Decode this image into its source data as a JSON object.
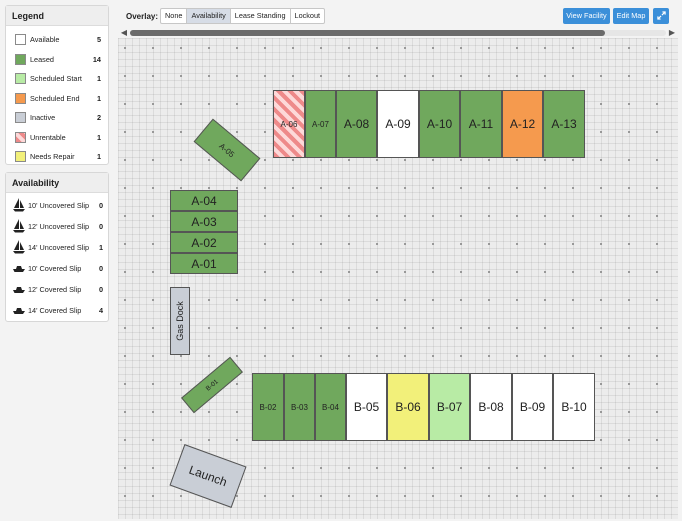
{
  "legend": {
    "title": "Legend",
    "items": [
      {
        "label": "Available",
        "count": "5",
        "color": "#ffffff"
      },
      {
        "label": "Leased",
        "count": "14",
        "color": "#70a85d"
      },
      {
        "label": "Scheduled Start",
        "count": "1",
        "color": "#b8eba5"
      },
      {
        "label": "Scheduled End",
        "count": "1",
        "color": "#f59a4e"
      },
      {
        "label": "Inactive",
        "count": "2",
        "color": "#c9ced6"
      },
      {
        "label": "Unrentable",
        "count": "1",
        "color": "#ee8a8a"
      },
      {
        "label": "Needs Repair",
        "count": "1",
        "color": "#f2f07a"
      }
    ]
  },
  "availability": {
    "title": "Availability",
    "items": [
      {
        "label": "10' Uncovered Slip",
        "count": "0",
        "icon": "sailboat-icon"
      },
      {
        "label": "12' Uncovered Slip",
        "count": "0",
        "icon": "sailboat-icon"
      },
      {
        "label": "14' Uncovered Slip",
        "count": "1",
        "icon": "sailboat-icon"
      },
      {
        "label": "10' Covered Slip",
        "count": "0",
        "icon": "motorboat-icon"
      },
      {
        "label": "12' Covered Slip",
        "count": "0",
        "icon": "motorboat-icon"
      },
      {
        "label": "14' Covered Slip",
        "count": "4",
        "icon": "motorboat-icon"
      }
    ]
  },
  "toolbar": {
    "overlay_label": "Overlay:",
    "overlay_options": [
      "None",
      "Availability",
      "Lease Standing",
      "Lockout"
    ],
    "overlay_selected": "Availability",
    "view_facility": "View Facility",
    "edit_map": "Edit Map",
    "expand_icon": "expand-icon",
    "accent_color": "#3b8fd9"
  },
  "map": {
    "slips": [
      {
        "id": "A-06",
        "status": "unrentable"
      },
      {
        "id": "A-07",
        "status": "leased"
      },
      {
        "id": "A-08",
        "status": "leased"
      },
      {
        "id": "A-09",
        "status": "available"
      },
      {
        "id": "A-10",
        "status": "leased"
      },
      {
        "id": "A-11",
        "status": "leased"
      },
      {
        "id": "A-12",
        "status": "sched-end"
      },
      {
        "id": "A-13",
        "status": "leased"
      },
      {
        "id": "A-05",
        "status": "leased"
      },
      {
        "id": "A-04",
        "status": "leased"
      },
      {
        "id": "A-03",
        "status": "leased"
      },
      {
        "id": "A-02",
        "status": "leased"
      },
      {
        "id": "A-01",
        "status": "leased"
      },
      {
        "id": "Gas Dock",
        "status": "inactive"
      },
      {
        "id": "B-01",
        "status": "leased"
      },
      {
        "id": "B-02",
        "status": "leased"
      },
      {
        "id": "B-03",
        "status": "leased"
      },
      {
        "id": "B-04",
        "status": "leased"
      },
      {
        "id": "B-05",
        "status": "available"
      },
      {
        "id": "B-06",
        "status": "repair"
      },
      {
        "id": "B-07",
        "status": "sched-start"
      },
      {
        "id": "B-08",
        "status": "available"
      },
      {
        "id": "B-09",
        "status": "available"
      },
      {
        "id": "B-10",
        "status": "available"
      },
      {
        "id": "Launch",
        "status": "inactive"
      }
    ]
  }
}
